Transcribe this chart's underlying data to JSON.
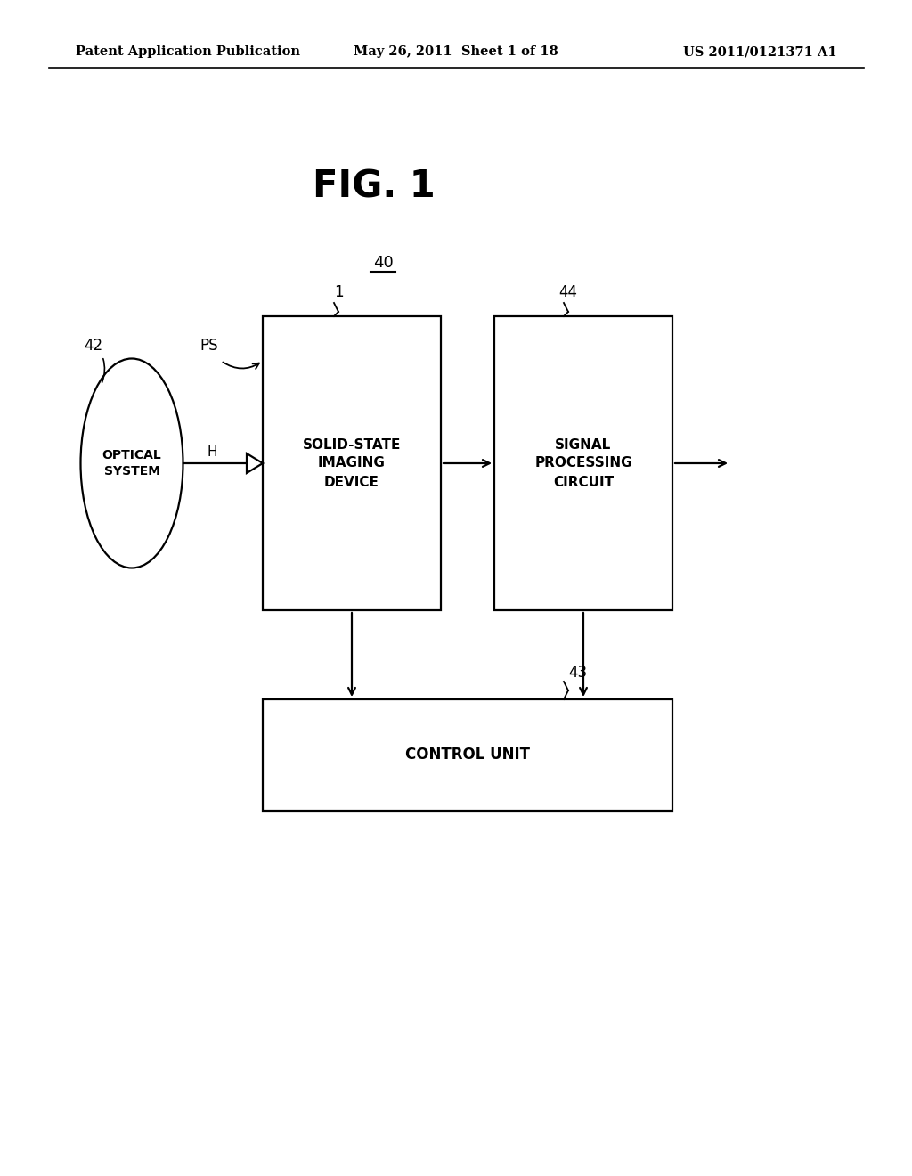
{
  "bg_color": "#ffffff",
  "header_left": "Patent Application Publication",
  "header_mid": "May 26, 2011  Sheet 1 of 18",
  "header_right": "US 2011/0121371 A1",
  "fig_title": "FIG. 1",
  "label_40": "40",
  "label_42": "42",
  "label_PS": "PS",
  "label_1": "1",
  "label_44": "44",
  "label_43": "43",
  "label_H": "H",
  "optical_text": "OPTICAL\nSYSTEM",
  "solid_state_text": "SOLID-STATE\nIMAGING\nDEVICE",
  "signal_proc_text": "SIGNAL\nPROCESSING\nCIRCUIT",
  "control_text": "CONTROL UNIT",
  "line_color": "#000000",
  "text_color": "#000000",
  "lw": 1.6
}
